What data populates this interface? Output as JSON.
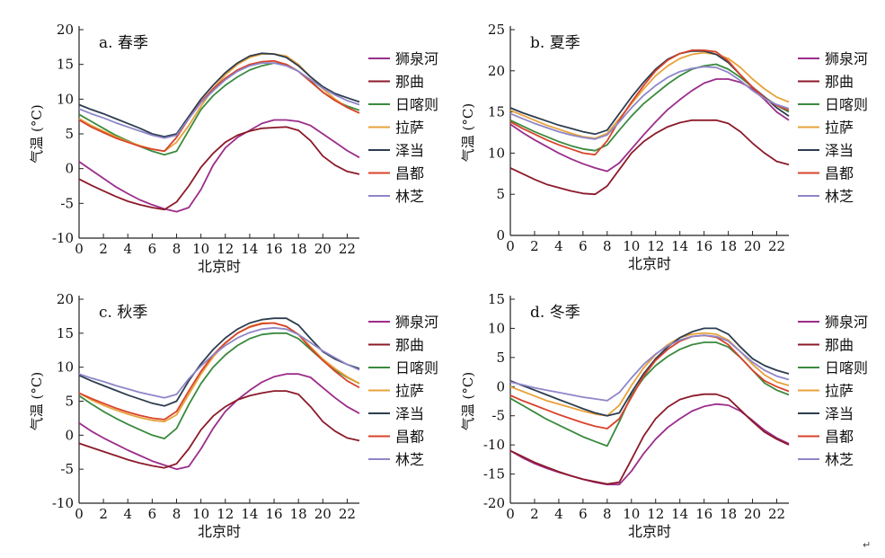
{
  "page_marker": "↵",
  "chart_data": [
    {
      "type": "line",
      "title": "a. 春季",
      "xlabel": "北京时",
      "ylabel": "气温 (°C)",
      "xlim": [
        0,
        23
      ],
      "ylim": [
        -10,
        20
      ],
      "xticks": [
        0,
        2,
        4,
        6,
        8,
        10,
        12,
        14,
        16,
        18,
        20,
        22
      ],
      "yticks": [
        -10,
        -5,
        0,
        5,
        10,
        15,
        20
      ],
      "legend_position": "right",
      "x": [
        0,
        1,
        2,
        3,
        4,
        5,
        6,
        7,
        8,
        9,
        10,
        11,
        12,
        13,
        14,
        15,
        16,
        17,
        18,
        19,
        20,
        21,
        22,
        23
      ],
      "series": [
        {
          "name": "狮泉河",
          "color": "#9b2d8a",
          "values": [
            1,
            -0.2,
            -1.4,
            -2.6,
            -3.6,
            -4.5,
            -5.2,
            -5.8,
            -6.2,
            -5.6,
            -3.0,
            0.5,
            3.0,
            4.5,
            5.5,
            6.5,
            7.0,
            7.0,
            6.8,
            6.2,
            5.0,
            3.8,
            2.6,
            1.6
          ]
        },
        {
          "name": "那曲",
          "color": "#8b1a2a",
          "values": [
            -1.5,
            -2.4,
            -3.2,
            -4.0,
            -4.7,
            -5.2,
            -5.6,
            -5.9,
            -4.8,
            -2.5,
            0.2,
            2.2,
            3.8,
            4.8,
            5.4,
            5.8,
            5.9,
            6.0,
            5.5,
            4.0,
            1.8,
            0.5,
            -0.4,
            -0.8
          ]
        },
        {
          "name": "日喀则",
          "color": "#3a8a3e",
          "values": [
            7.8,
            6.8,
            5.8,
            4.8,
            4.0,
            3.2,
            2.5,
            2.0,
            2.5,
            5.5,
            8.5,
            10.5,
            12.0,
            13.2,
            14.2,
            14.8,
            15.2,
            15.0,
            14.0,
            12.6,
            11.0,
            9.8,
            9.0,
            8.4
          ]
        },
        {
          "name": "拉萨",
          "color": "#e8a23a",
          "values": [
            7.2,
            6.2,
            5.4,
            4.6,
            3.9,
            3.3,
            2.8,
            2.5,
            3.8,
            6.2,
            9.0,
            11.5,
            13.5,
            15.0,
            16.0,
            16.5,
            16.5,
            16.2,
            15.0,
            13.2,
            11.5,
            10.0,
            8.8,
            8.0
          ]
        },
        {
          "name": "泽当",
          "color": "#2d3d50",
          "values": [
            9.2,
            8.5,
            7.9,
            7.2,
            6.5,
            5.8,
            5.0,
            4.6,
            5.0,
            7.5,
            10.0,
            12.0,
            13.8,
            15.2,
            16.2,
            16.6,
            16.5,
            16.0,
            14.8,
            13.2,
            11.8,
            10.8,
            10.2,
            9.6
          ]
        },
        {
          "name": "昌都",
          "color": "#d8432b",
          "values": [
            7.0,
            6.0,
            5.2,
            4.4,
            3.8,
            3.2,
            2.8,
            2.5,
            4.5,
            7.2,
            9.6,
            11.5,
            13.0,
            14.2,
            15.0,
            15.4,
            15.5,
            15.0,
            14.0,
            12.5,
            11.0,
            9.8,
            8.8,
            8.0
          ]
        },
        {
          "name": "林芝",
          "color": "#8e86c8",
          "values": [
            8.6,
            7.9,
            7.3,
            6.6,
            6.0,
            5.4,
            4.8,
            4.4,
            4.8,
            7.2,
            9.5,
            11.2,
            12.8,
            14.0,
            14.8,
            15.2,
            15.2,
            14.8,
            14.0,
            12.8,
            11.6,
            10.6,
            9.8,
            9.2
          ]
        }
      ]
    },
    {
      "type": "line",
      "title": "b. 夏季",
      "xlabel": "北京时",
      "ylabel": "气温 (°C)",
      "xlim": [
        0,
        23
      ],
      "ylim": [
        0,
        25
      ],
      "xticks": [
        0,
        2,
        4,
        6,
        8,
        10,
        12,
        14,
        16,
        18,
        20,
        22
      ],
      "yticks": [
        0,
        5,
        10,
        15,
        20,
        25
      ],
      "legend_position": "right",
      "x": [
        0,
        1,
        2,
        3,
        4,
        5,
        6,
        7,
        8,
        9,
        10,
        11,
        12,
        13,
        14,
        15,
        16,
        17,
        18,
        19,
        20,
        21,
        22,
        23
      ],
      "series": [
        {
          "name": "狮泉河",
          "color": "#9b2d8a",
          "values": [
            13.5,
            12.5,
            11.6,
            10.8,
            10.0,
            9.3,
            8.7,
            8.2,
            7.8,
            8.8,
            10.5,
            12.2,
            13.8,
            15.3,
            16.5,
            17.6,
            18.5,
            19.0,
            19.0,
            18.6,
            17.8,
            16.5,
            15.0,
            14.0
          ]
        },
        {
          "name": "那曲",
          "color": "#8b1a2a",
          "values": [
            8.2,
            7.5,
            6.8,
            6.2,
            5.8,
            5.4,
            5.1,
            5.0,
            6.0,
            8.0,
            10.0,
            11.4,
            12.4,
            13.2,
            13.7,
            14.0,
            14.0,
            14.0,
            13.6,
            12.6,
            11.2,
            10.0,
            9.0,
            8.6
          ]
        },
        {
          "name": "日喀则",
          "color": "#3a8a3e",
          "values": [
            14.0,
            13.3,
            12.6,
            12.0,
            11.4,
            10.9,
            10.5,
            10.3,
            11.0,
            12.8,
            14.5,
            16.0,
            17.2,
            18.4,
            19.4,
            20.2,
            20.6,
            20.8,
            20.2,
            19.2,
            18.0,
            16.8,
            15.8,
            15.0
          ]
        },
        {
          "name": "拉萨",
          "color": "#e8a23a",
          "values": [
            15.2,
            14.6,
            14.0,
            13.4,
            12.9,
            12.4,
            12.0,
            11.8,
            12.4,
            14.2,
            16.0,
            17.8,
            19.4,
            20.6,
            21.5,
            22.0,
            22.2,
            22.0,
            21.5,
            20.4,
            19.0,
            17.8,
            16.8,
            16.2
          ]
        },
        {
          "name": "泽当",
          "color": "#2d3d50",
          "values": [
            15.5,
            14.9,
            14.4,
            13.9,
            13.4,
            13.0,
            12.6,
            12.3,
            12.8,
            14.8,
            16.8,
            18.6,
            20.2,
            21.4,
            22.1,
            22.4,
            22.4,
            22.0,
            21.0,
            19.5,
            18.0,
            16.8,
            15.5,
            14.5
          ]
        },
        {
          "name": "昌都",
          "color": "#d8432b",
          "values": [
            13.8,
            13.0,
            12.3,
            11.6,
            11.0,
            10.5,
            10.0,
            9.8,
            11.5,
            14.0,
            16.2,
            18.2,
            20.0,
            21.3,
            22.1,
            22.5,
            22.5,
            22.3,
            21.2,
            19.5,
            18.0,
            16.7,
            15.8,
            15.2
          ]
        },
        {
          "name": "林芝",
          "color": "#8e86c8",
          "values": [
            14.8,
            14.2,
            13.6,
            13.1,
            12.6,
            12.2,
            11.9,
            11.7,
            12.2,
            13.8,
            15.5,
            17.0,
            18.2,
            19.2,
            19.9,
            20.3,
            20.5,
            20.4,
            19.8,
            18.8,
            17.6,
            16.6,
            15.9,
            15.4
          ]
        }
      ]
    },
    {
      "type": "line",
      "title": "c. 秋季",
      "xlabel": "北京时",
      "ylabel": "气温 (°C)",
      "xlim": [
        0,
        23
      ],
      "ylim": [
        -10,
        20
      ],
      "xticks": [
        0,
        2,
        4,
        6,
        8,
        10,
        12,
        14,
        16,
        18,
        20,
        22
      ],
      "yticks": [
        -10,
        -5,
        0,
        5,
        10,
        15,
        20
      ],
      "legend_position": "right",
      "x": [
        0,
        1,
        2,
        3,
        4,
        5,
        6,
        7,
        8,
        9,
        10,
        11,
        12,
        13,
        14,
        15,
        16,
        17,
        18,
        19,
        20,
        21,
        22,
        23
      ],
      "series": [
        {
          "name": "狮泉河",
          "color": "#9b2d8a",
          "values": [
            1.8,
            0.6,
            -0.4,
            -1.3,
            -2.2,
            -3.0,
            -3.8,
            -4.4,
            -5.0,
            -4.6,
            -2.0,
            1.0,
            3.5,
            5.2,
            6.6,
            7.8,
            8.6,
            9.0,
            9.0,
            8.5,
            7.0,
            5.5,
            4.2,
            3.2
          ]
        },
        {
          "name": "那曲",
          "color": "#8b1a2a",
          "values": [
            -1.2,
            -1.8,
            -2.4,
            -3.0,
            -3.6,
            -4.1,
            -4.5,
            -4.8,
            -4.2,
            -2.0,
            0.8,
            2.8,
            4.2,
            5.2,
            5.8,
            6.2,
            6.5,
            6.5,
            6.0,
            4.2,
            2.0,
            0.6,
            -0.4,
            -0.8
          ]
        },
        {
          "name": "日喀则",
          "color": "#3a8a3e",
          "values": [
            5.8,
            4.6,
            3.5,
            2.5,
            1.6,
            0.8,
            0.0,
            -0.5,
            1.0,
            4.5,
            7.6,
            10.0,
            11.8,
            13.2,
            14.2,
            14.8,
            15.0,
            15.0,
            14.2,
            12.6,
            11.0,
            9.6,
            8.5,
            7.6
          ]
        },
        {
          "name": "拉萨",
          "color": "#e8a23a",
          "values": [
            6.2,
            5.2,
            4.4,
            3.7,
            3.1,
            2.6,
            2.2,
            2.0,
            3.0,
            6.0,
            9.0,
            11.5,
            13.5,
            15.0,
            16.0,
            16.5,
            16.5,
            16.0,
            14.8,
            13.0,
            11.2,
            9.8,
            8.6,
            7.6
          ]
        },
        {
          "name": "泽当",
          "color": "#2d3d50",
          "values": [
            8.8,
            8.0,
            7.3,
            6.6,
            5.9,
            5.3,
            4.7,
            4.3,
            5.0,
            8.0,
            10.5,
            12.6,
            14.3,
            15.6,
            16.5,
            17.0,
            17.2,
            17.2,
            16.2,
            14.2,
            12.3,
            11.2,
            10.4,
            9.8
          ]
        },
        {
          "name": "昌都",
          "color": "#d8432b",
          "values": [
            6.2,
            5.4,
            4.7,
            4.0,
            3.4,
            2.9,
            2.5,
            2.3,
            3.5,
            6.5,
            9.4,
            11.8,
            13.6,
            15.0,
            15.9,
            16.4,
            16.5,
            16.0,
            14.8,
            12.8,
            11.0,
            9.4,
            8.0,
            7.0
          ]
        },
        {
          "name": "林芝",
          "color": "#8e86c8",
          "values": [
            9.0,
            8.4,
            7.9,
            7.3,
            6.8,
            6.3,
            5.9,
            5.5,
            6.0,
            8.3,
            10.2,
            11.8,
            13.2,
            14.3,
            15.1,
            15.6,
            15.8,
            15.6,
            14.8,
            13.6,
            12.4,
            11.4,
            10.4,
            9.6
          ]
        }
      ]
    },
    {
      "type": "line",
      "title": "d. 冬季",
      "xlabel": "北京时",
      "ylabel": "气温 (°C)",
      "xlim": [
        0,
        23
      ],
      "ylim": [
        -20,
        15
      ],
      "xticks": [
        0,
        2,
        4,
        6,
        8,
        10,
        12,
        14,
        16,
        18,
        20,
        22
      ],
      "yticks": [
        -20,
        -15,
        -10,
        -5,
        0,
        5,
        10,
        15
      ],
      "legend_position": "right",
      "x": [
        0,
        1,
        2,
        3,
        4,
        5,
        6,
        7,
        8,
        9,
        10,
        11,
        12,
        13,
        14,
        15,
        16,
        17,
        18,
        19,
        20,
        21,
        22,
        23
      ],
      "series": [
        {
          "name": "狮泉河",
          "color": "#9b2d8a",
          "values": [
            -11.0,
            -12.2,
            -13.2,
            -14.0,
            -14.7,
            -15.3,
            -15.9,
            -16.4,
            -16.8,
            -16.8,
            -14.5,
            -11.5,
            -9.0,
            -7.0,
            -5.5,
            -4.2,
            -3.4,
            -3.0,
            -3.2,
            -4.2,
            -5.8,
            -7.5,
            -8.8,
            -9.8
          ]
        },
        {
          "name": "那曲",
          "color": "#8b1a2a",
          "values": [
            -11.0,
            -12.0,
            -13.0,
            -13.8,
            -14.6,
            -15.3,
            -15.9,
            -16.3,
            -16.7,
            -16.4,
            -12.5,
            -8.5,
            -5.5,
            -3.5,
            -2.2,
            -1.6,
            -1.3,
            -1.3,
            -2.0,
            -4.0,
            -6.0,
            -7.8,
            -9.0,
            -10.0
          ]
        },
        {
          "name": "日喀则",
          "color": "#3a8a3e",
          "values": [
            -2.0,
            -3.2,
            -4.4,
            -5.6,
            -6.6,
            -7.6,
            -8.6,
            -9.4,
            -10.2,
            -6.0,
            -1.5,
            1.5,
            3.6,
            5.2,
            6.4,
            7.2,
            7.6,
            7.6,
            6.8,
            5.0,
            2.8,
            0.6,
            -0.6,
            -1.4
          ]
        },
        {
          "name": "拉萨",
          "color": "#e8a23a",
          "values": [
            0.0,
            -0.8,
            -1.6,
            -2.4,
            -3.0,
            -3.6,
            -4.2,
            -4.7,
            -5.0,
            -3.2,
            0.2,
            3.2,
            5.5,
            7.2,
            8.4,
            9.0,
            9.2,
            9.0,
            8.0,
            6.0,
            3.8,
            2.0,
            0.8,
            0.2
          ]
        },
        {
          "name": "泽当",
          "color": "#2d3d50",
          "values": [
            1.0,
            0.2,
            -0.6,
            -1.4,
            -2.2,
            -3.0,
            -3.8,
            -4.5,
            -5.0,
            -4.5,
            -1.0,
            2.2,
            4.8,
            6.8,
            8.4,
            9.4,
            10.0,
            10.0,
            9.0,
            6.8,
            4.8,
            3.6,
            2.8,
            2.2
          ]
        },
        {
          "name": "昌都",
          "color": "#d8432b",
          "values": [
            -1.5,
            -2.4,
            -3.2,
            -4.0,
            -4.8,
            -5.5,
            -6.2,
            -6.8,
            -7.2,
            -5.5,
            -1.8,
            1.8,
            4.5,
            6.4,
            7.8,
            8.6,
            8.8,
            8.5,
            7.2,
            5.0,
            2.8,
            1.0,
            0.0,
            -0.8
          ]
        },
        {
          "name": "林芝",
          "color": "#8e86c8",
          "values": [
            0.8,
            0.3,
            -0.2,
            -0.6,
            -1.0,
            -1.4,
            -1.8,
            -2.1,
            -2.4,
            -1.0,
            1.5,
            3.8,
            5.6,
            7.0,
            8.0,
            8.6,
            8.8,
            8.6,
            7.8,
            6.0,
            4.2,
            2.8,
            1.8,
            1.2
          ]
        }
      ]
    }
  ]
}
